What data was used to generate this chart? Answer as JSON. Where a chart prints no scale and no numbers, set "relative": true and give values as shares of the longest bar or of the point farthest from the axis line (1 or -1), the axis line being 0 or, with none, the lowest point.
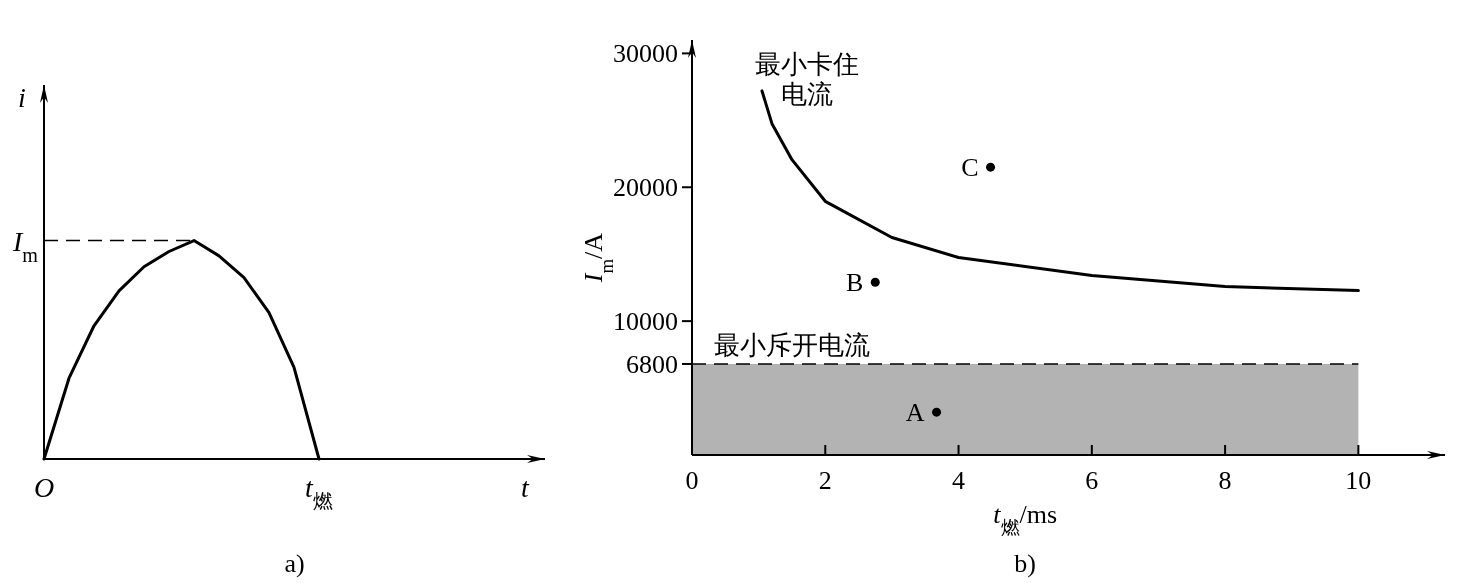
{
  "chart_data": [
    {
      "type": "line",
      "relative": true,
      "xlabel": "*t*",
      "ylabel": "*i*",
      "categories": [
        "*O*",
        null,
        null,
        null,
        null,
        null,
        null,
        null,
        null,
        null,
        null,
        "*t*$_{燃}$",
        null,
        null,
        null,
        null,
        null,
        null,
        null,
        null
      ],
      "values": [
        0,
        0.37,
        0.61,
        0.77,
        0.88,
        0.95,
        1,
        0.93,
        0.83,
        0.67,
        0.42,
        0,
        null,
        null,
        null,
        null,
        null,
        null,
        null,
        null
      ],
      "color": "#000000",
      "ref_lines": [
        {
          "axis": "y",
          "value": 1,
          "label": "*I*$_{m}$",
          "line_style": "dashed"
        }
      ],
      "annotations": [
        "a)"
      ]
    },
    {
      "type": "line",
      "xlabel": "*t*$_{燃}$/ms",
      "ylabel": "*I*$_{m}$/A",
      "xlim": [
        0,
        11.3
      ],
      "ylim": [
        0,
        31000
      ],
      "xticks": [
        0,
        2,
        4,
        6,
        8,
        10
      ],
      "yticks": [
        6800,
        10000,
        20000,
        30000
      ],
      "series": [
        {
          "name": "最小卡住电流",
          "color": "#000000",
          "x": [
            1.05,
            1.2,
            1.5,
            2,
            3,
            4,
            6,
            8,
            10
          ],
          "values": [
            27200,
            24750,
            22060,
            18950,
            16250,
            14750,
            13400,
            12580,
            12280
          ]
        },
        {
          "type": "scatter",
          "marker": "circle",
          "color": "#000000",
          "x": [
            3.67,
            2.75,
            4.48
          ],
          "values": [
            3200,
            12900,
            21500
          ]
        }
      ],
      "ref_lines": [
        {
          "axis": "y",
          "value": 6800,
          "label": "最小斥开电流",
          "line_style": "dashed"
        }
      ],
      "bands": [
        {
          "axis": "y",
          "from": 0,
          "to": 6800,
          "color": "#b3b3b3"
        }
      ],
      "annotations": [
        {
          "text": "A",
          "x": 3.67,
          "y": 3200
        },
        {
          "text": "B",
          "x": 2.75,
          "y": 12900
        },
        {
          "text": "C",
          "x": 4.48,
          "y": 21500
        },
        "b)"
      ]
    }
  ]
}
